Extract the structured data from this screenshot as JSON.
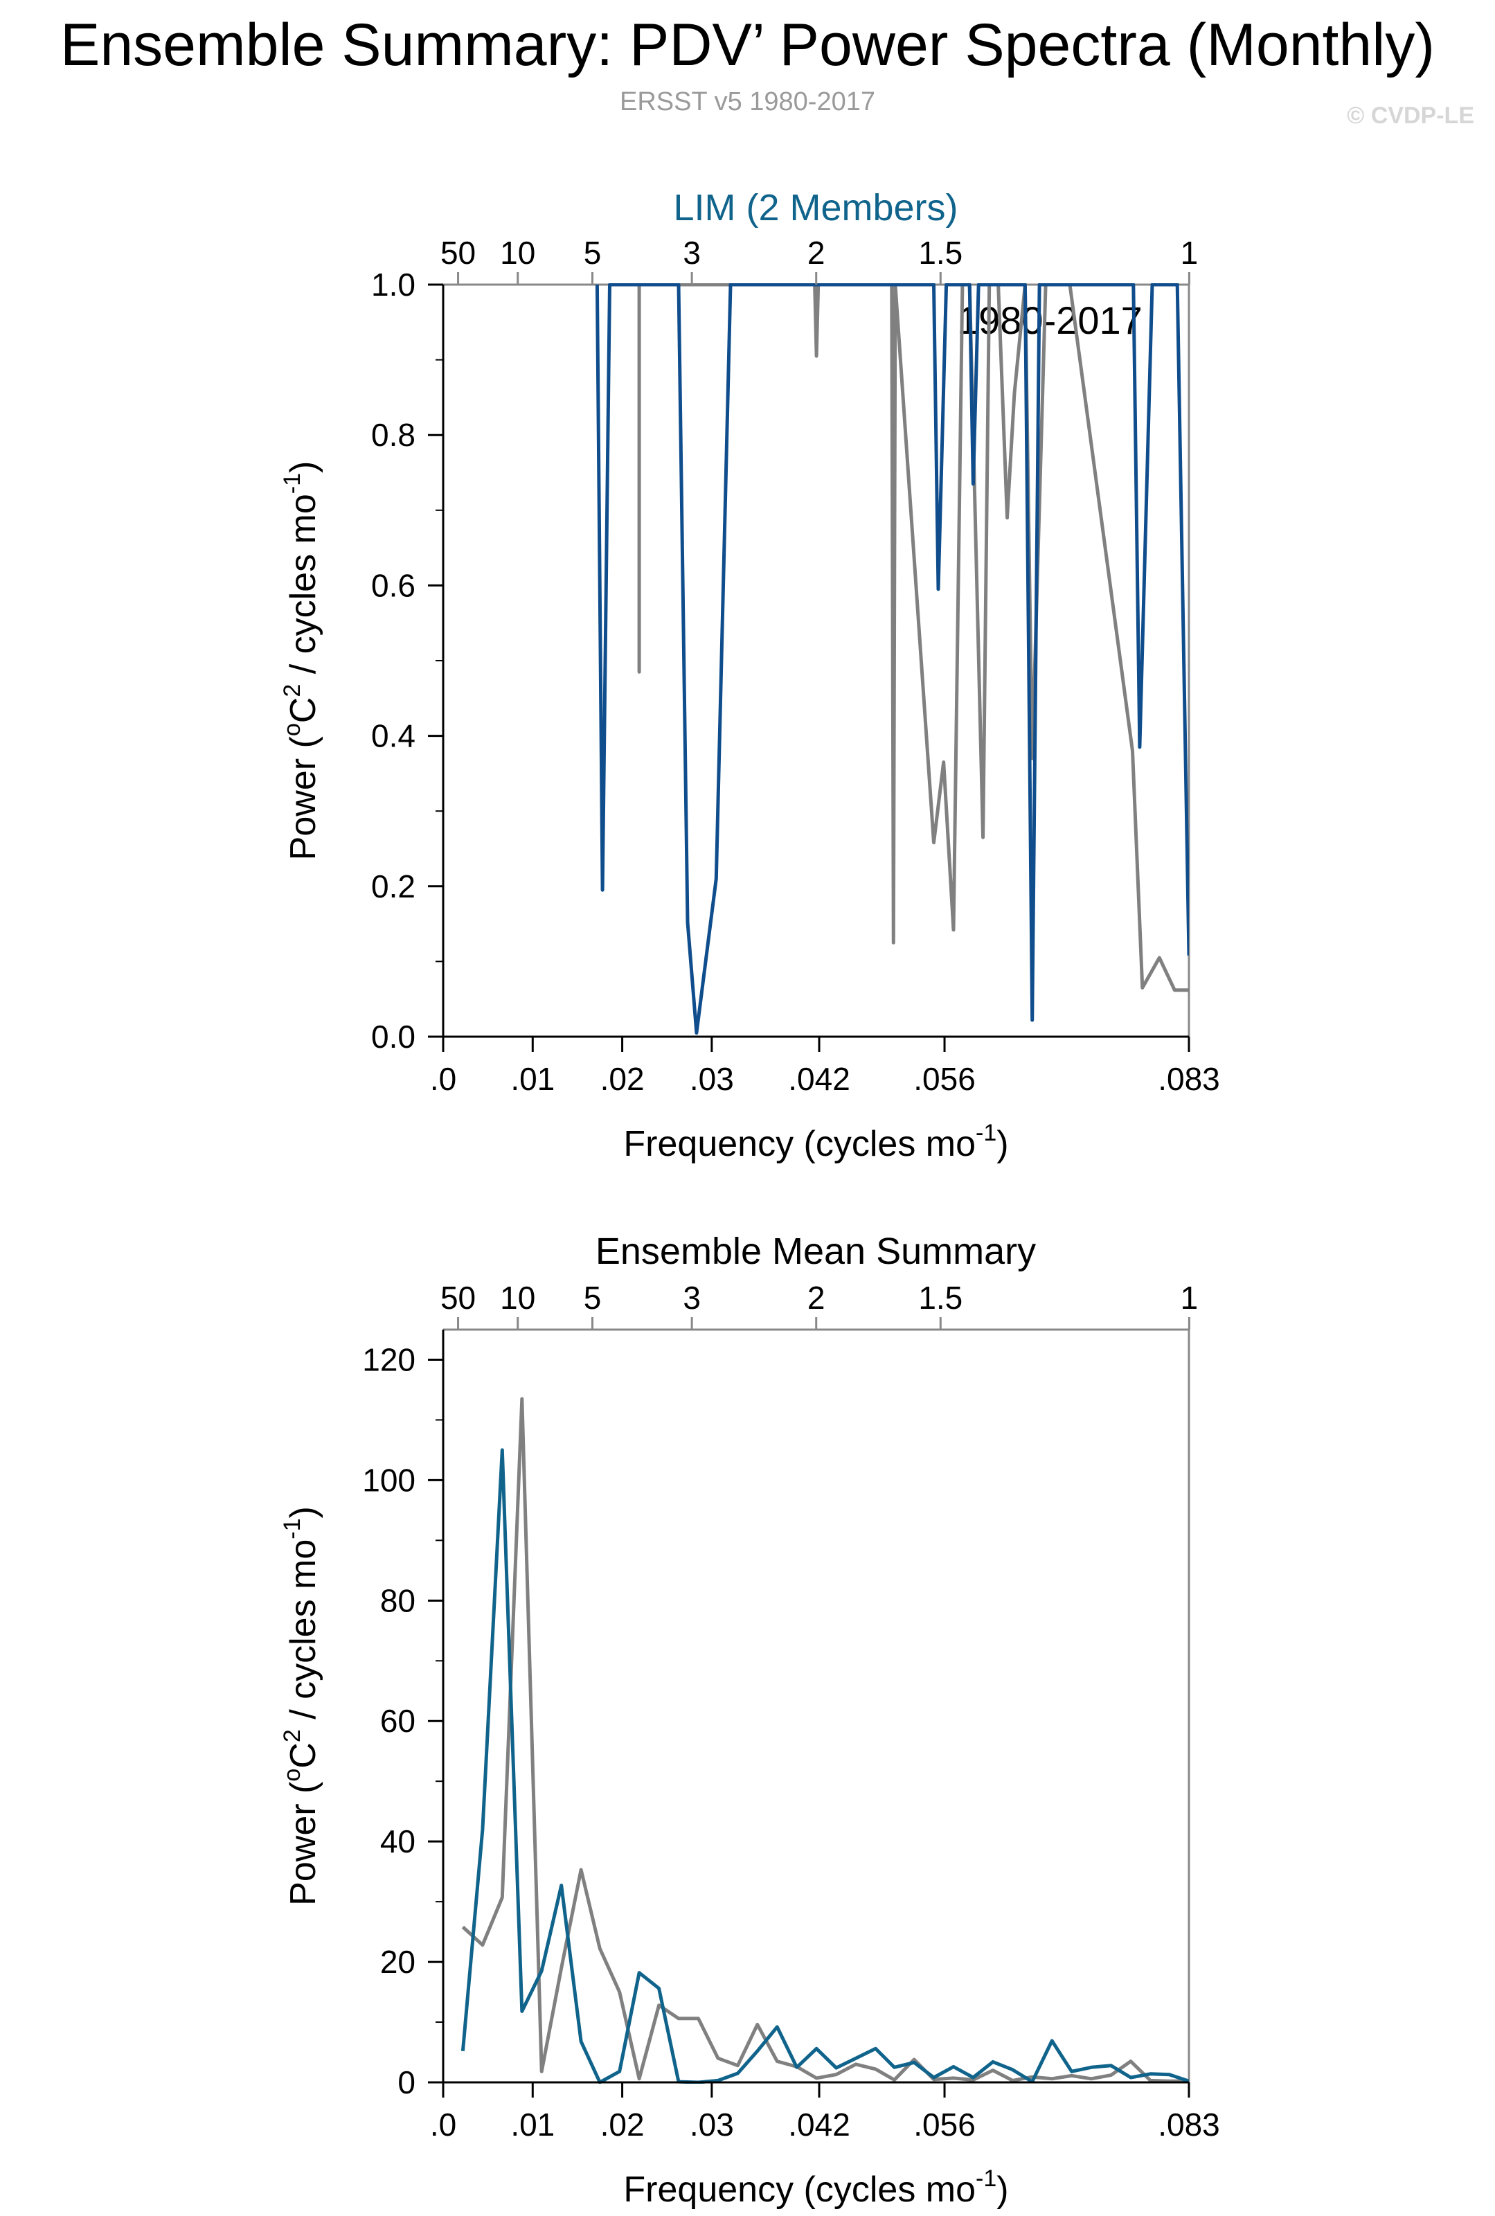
{
  "title": "Ensemble Summary: PDV’ Power Spectra (Monthly)",
  "subtitle": "ERSST v5 1980-2017",
  "copyright": "© CVDP-LE",
  "colors": {
    "lim": "#0f4d8c",
    "lim_mean": "#10648c",
    "obs": "#808080",
    "axis": "#000000",
    "frame": "#888888",
    "title_lim": "#10648c",
    "subtitle": "#9a9a9a"
  },
  "chart_data": [
    {
      "type": "line",
      "title": "LIM (2 Members)",
      "annotation": "1980-2017",
      "xlabel": "Frequency (cycles mo",
      "xlabel_sup": "-1",
      "xlabel_end": ")",
      "ylabel_parts": [
        "Power (",
        "o",
        "C",
        "2",
        " / cycles mo",
        "-1",
        ")"
      ],
      "xlim": [
        0,
        0.0833
      ],
      "ylim": [
        0,
        1.0
      ],
      "x_ticks": [
        0,
        0.01,
        0.02,
        0.03,
        0.042,
        0.056,
        0.0833
      ],
      "x_tick_labels": [
        ".0",
        ".01",
        ".02",
        ".03",
        ".042",
        ".056",
        ".083"
      ],
      "y_ticks": [
        0,
        0.2,
        0.4,
        0.6,
        0.8,
        1.0
      ],
      "y_tick_labels": [
        "0.0",
        "0.2",
        "0.4",
        "0.6",
        "0.8",
        "1.0"
      ],
      "period_ticks": [
        0.001667,
        0.008333,
        0.016667,
        0.027778,
        0.041667,
        0.055556,
        0.083333
      ],
      "period_tick_labels": [
        "50",
        "10",
        "5",
        "3",
        "2",
        "1.5",
        "1"
      ],
      "series": [
        {
          "color_key": "obs",
          "x": [
            0.0219,
            0.0219,
            0.0219,
            0.0415,
            0.0417,
            0.0419,
            0.0501,
            0.0503,
            0.0505,
            0.0548,
            0.0559,
            0.057,
            0.058,
            0.0588,
            0.0603,
            0.061,
            0.062,
            0.063,
            0.0638,
            0.065,
            0.0658,
            0.0673,
            0.0689,
            0.07,
            0.077,
            0.0781,
            0.08,
            0.0817,
            0.0833
          ],
          "y": [
            1.0,
            0.485,
            1.0,
            1.0,
            0.905,
            1.0,
            1.0,
            0.125,
            1.0,
            0.258,
            0.365,
            0.142,
            1.0,
            1.0,
            0.265,
            1.0,
            1.0,
            0.69,
            0.855,
            1.0,
            0.37,
            1.0,
            1.0,
            1.0,
            0.38,
            0.065,
            0.105,
            0.062,
            0.062
          ]
        },
        {
          "color_key": "lim",
          "x": [
            0.0172,
            0.0178,
            0.0186,
            0.0263,
            0.0273,
            0.0283,
            0.0305,
            0.0321,
            0.0548,
            0.0553,
            0.0562,
            0.0588,
            0.0592,
            0.0598,
            0.065,
            0.0658,
            0.0666,
            0.0771,
            0.0778,
            0.0792,
            0.082,
            0.0833
          ],
          "y": [
            1.0,
            0.195,
            1.0,
            1.0,
            0.152,
            0.005,
            0.21,
            1.0,
            1.0,
            0.595,
            1.0,
            1.0,
            0.735,
            1.0,
            1.0,
            0.022,
            1.0,
            1.0,
            0.385,
            1.0,
            1.0,
            0.108
          ]
        }
      ]
    },
    {
      "type": "line",
      "title": "Ensemble Mean Summary",
      "xlabel": "Frequency (cycles mo",
      "xlabel_sup": "-1",
      "xlabel_end": ")",
      "ylabel_parts": [
        "Power (",
        "o",
        "C",
        "2",
        " / cycles mo",
        "-1",
        ")"
      ],
      "xlim": [
        0,
        0.0833
      ],
      "ylim": [
        0,
        125
      ],
      "x_ticks": [
        0,
        0.01,
        0.02,
        0.03,
        0.042,
        0.056,
        0.0833
      ],
      "x_tick_labels": [
        ".0",
        ".01",
        ".02",
        ".03",
        ".042",
        ".056",
        ".083"
      ],
      "y_ticks": [
        0,
        20,
        40,
        60,
        80,
        100,
        120
      ],
      "y_tick_labels": [
        "0",
        "20",
        "40",
        "60",
        "80",
        "100",
        "120"
      ],
      "period_ticks": [
        0.001667,
        0.008333,
        0.016667,
        0.027778,
        0.041667,
        0.055556,
        0.083333
      ],
      "period_tick_labels": [
        "50",
        "10",
        "5",
        "3",
        "2",
        "1.5",
        "1"
      ],
      "series": [
        {
          "color_key": "obs",
          "x": [
            0.0022,
            0.0044,
            0.0066,
            0.0088,
            0.011,
            0.0132,
            0.0154,
            0.0175,
            0.0197,
            0.0219,
            0.0241,
            0.0263,
            0.0285,
            0.0307,
            0.0329,
            0.0351,
            0.0373,
            0.0395,
            0.0417,
            0.0439,
            0.0461,
            0.0483,
            0.0504,
            0.0526,
            0.0548,
            0.057,
            0.0592,
            0.0614,
            0.0636,
            0.0658,
            0.068,
            0.0702,
            0.0724,
            0.0746,
            0.0768,
            0.079,
            0.0811,
            0.0833
          ],
          "y": [
            25.8,
            22.8,
            30.7,
            113.5,
            1.8,
            19.0,
            35.3,
            22.2,
            15.0,
            0.6,
            12.8,
            10.6,
            10.6,
            4.0,
            2.8,
            9.6,
            3.5,
            2.6,
            0.7,
            1.3,
            3.0,
            2.2,
            0.4,
            3.8,
            0.5,
            0.7,
            0.4,
            2.0,
            0.3,
            0.9,
            0.6,
            1.1,
            0.6,
            1.2,
            3.5,
            0.3,
            0.2,
            0.2
          ]
        },
        {
          "color_key": "lim_mean",
          "x": [
            0.0022,
            0.0044,
            0.0066,
            0.0088,
            0.011,
            0.0132,
            0.0154,
            0.0175,
            0.0197,
            0.0219,
            0.0241,
            0.0263,
            0.0285,
            0.0307,
            0.0329,
            0.0351,
            0.0373,
            0.0395,
            0.0417,
            0.0439,
            0.0461,
            0.0483,
            0.0504,
            0.0526,
            0.0548,
            0.057,
            0.0592,
            0.0614,
            0.0636,
            0.0658,
            0.068,
            0.0702,
            0.0724,
            0.0746,
            0.0768,
            0.079,
            0.0811,
            0.0833
          ],
          "y": [
            5.2,
            42.0,
            105.0,
            11.8,
            18.5,
            32.7,
            6.8,
            0.0,
            1.8,
            18.2,
            15.6,
            0.1,
            0.0,
            0.3,
            1.5,
            5.2,
            9.2,
            2.5,
            5.6,
            2.4,
            4.0,
            5.6,
            2.5,
            3.3,
            0.8,
            2.6,
            0.8,
            3.4,
            2.1,
            0.1,
            6.9,
            1.8,
            2.5,
            2.8,
            0.8,
            1.4,
            1.3,
            0.2
          ]
        }
      ]
    }
  ]
}
